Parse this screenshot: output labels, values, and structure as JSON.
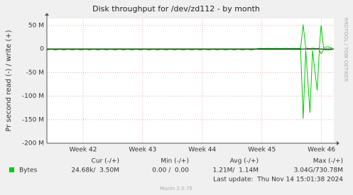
{
  "chart_data": {
    "type": "line",
    "title": "Disk throughput for /dev/zd112 - by month",
    "y_label": "Pr second read (-) / write (+)",
    "side_label": "RRDTOOL / TOBI OETIKER",
    "x": [
      0,
      0.5,
      1,
      1.5,
      2,
      2.5,
      3,
      3.5,
      4,
      4.5,
      5,
      5.5,
      6,
      6.5,
      7,
      7.5,
      8,
      8.5,
      9,
      9.5,
      10,
      10.5,
      11,
      11.5,
      12,
      12.5,
      13,
      13.5,
      14,
      14.5,
      15,
      15.5,
      16,
      16.5,
      17,
      17.5,
      18,
      18.5,
      19,
      19.5,
      20,
      20.5,
      21,
      21.5,
      22,
      22.5,
      23,
      23.5,
      24,
      24.5,
      25,
      25.5,
      26,
      26.5,
      27,
      27.5,
      28,
      28.5,
      29,
      29.5,
      29.8,
      30.1,
      30.4,
      30.9,
      31.2,
      31.75,
      32,
      32.2,
      32.5,
      33,
      33.5
    ],
    "series": [
      {
        "name": "Bytes",
        "color": "#00cc00",
        "values": [
          0,
          0,
          0,
          0,
          0,
          0,
          0,
          0,
          0,
          0,
          0,
          0,
          0,
          0,
          0,
          0,
          0,
          0,
          0,
          0,
          0,
          0,
          0,
          0,
          0,
          0,
          0,
          0,
          0,
          0,
          0,
          0,
          0,
          0,
          0,
          0,
          0,
          0,
          0,
          0,
          0,
          0,
          0,
          0,
          0,
          0,
          0,
          0,
          0,
          0,
          1.5,
          1.2,
          1.5,
          1.2,
          1.5,
          1.2,
          1.5,
          1.2,
          1.5,
          1.2,
          2,
          52,
          2,
          1,
          2,
          1,
          2,
          50,
          3,
          5,
          2
        ]
      },
      {
        "color": "#00cc00",
        "values": [
          -2,
          0,
          -2,
          0,
          -2,
          0,
          -2,
          0,
          -2,
          0,
          -2,
          0,
          -2,
          0,
          -2,
          0,
          -2,
          0,
          -2,
          0,
          -2,
          0,
          -2,
          0,
          -2,
          0,
          -2,
          0,
          -2,
          0,
          -2,
          0,
          -2,
          0,
          -2,
          0,
          -2,
          0,
          -2,
          0,
          -2,
          0,
          -2,
          0,
          -2,
          0,
          -2,
          0,
          -2,
          0,
          -0.5,
          -0.5,
          -0.5,
          -0.5,
          -0.5,
          -0.5,
          -0.5,
          -0.5,
          -0.5,
          -0.5,
          -1,
          -148,
          -2,
          -135,
          -3,
          -88,
          -2,
          -10,
          -1,
          -2,
          -1
        ]
      }
    ],
    "xlim": [
      0,
      33.7
    ],
    "xticks": [
      {
        "value": 4.25,
        "label": "Week 42"
      },
      {
        "value": 11.25,
        "label": "Week 43"
      },
      {
        "value": 18.25,
        "label": "Week 44"
      },
      {
        "value": 25.25,
        "label": "Week 45"
      },
      {
        "value": 32.25,
        "label": "Week 46"
      }
    ],
    "ylim": [
      -200,
      65
    ],
    "yticks": [
      {
        "value": 50,
        "label": "50 M"
      },
      0,
      {
        "value": -50,
        "label": "-50 M"
      },
      {
        "value": -100,
        "label": "-100 M"
      },
      {
        "value": -150,
        "label": "-150 M"
      },
      {
        "value": -200,
        "label": "-200 M"
      }
    ],
    "grid": true,
    "legend_table": {
      "headers": [
        "Cur (-/+)",
        "Min (-/+)",
        "Avg (-/+)",
        "Max (-/+)"
      ],
      "row": [
        "24.68k/  3.50M",
        "0.00 /  0.00",
        "1.21M/  1.14M",
        "3.04G/730.78M"
      ]
    },
    "last_update": "Last update:  Thu Nov 14 15:01:38 2024",
    "footer": "Munin 2.0.75"
  }
}
